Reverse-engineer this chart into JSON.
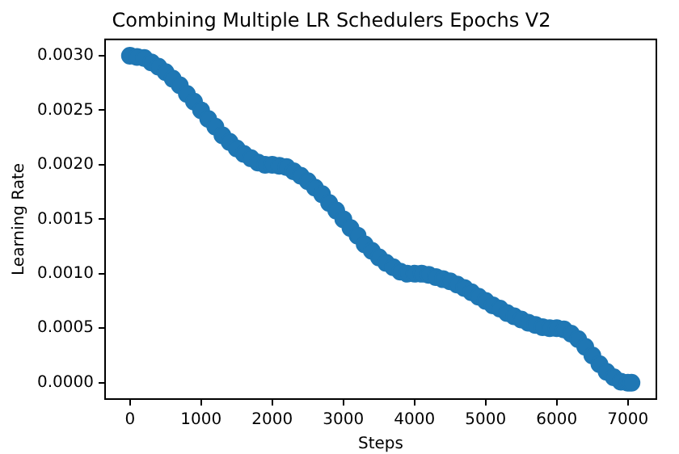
{
  "chart_data": {
    "type": "scatter",
    "title": "Combining Multiple LR Schedulers Epochs V2",
    "xlabel": "Steps",
    "ylabel": "Learning Rate",
    "x": [
      0,
      100,
      200,
      300,
      400,
      500,
      600,
      700,
      800,
      900,
      1000,
      1100,
      1200,
      1300,
      1400,
      1500,
      1600,
      1700,
      1800,
      1900,
      2000,
      2100,
      2200,
      2300,
      2400,
      2500,
      2600,
      2700,
      2800,
      2900,
      3000,
      3100,
      3200,
      3300,
      3400,
      3500,
      3600,
      3700,
      3800,
      3900,
      4000,
      4100,
      4200,
      4300,
      4400,
      4500,
      4600,
      4700,
      4800,
      4900,
      5000,
      5100,
      5200,
      5300,
      5400,
      5500,
      5600,
      5700,
      5800,
      5900,
      6000,
      6100,
      6200,
      6300,
      6400,
      6500,
      6600,
      6700,
      6800,
      6900,
      7000,
      7050
    ],
    "series": [
      {
        "color": "#1f77b4",
        "values": [
          0.003,
          0.00299,
          0.00298,
          0.00294,
          0.0029,
          0.00285,
          0.00279,
          0.00273,
          0.00265,
          0.00258,
          0.0025,
          0.00242,
          0.00235,
          0.00227,
          0.00221,
          0.00215,
          0.0021,
          0.00206,
          0.00202,
          0.002,
          0.002,
          0.00199,
          0.00198,
          0.00194,
          0.0019,
          0.00185,
          0.00179,
          0.00173,
          0.00165,
          0.00158,
          0.0015,
          0.00142,
          0.00135,
          0.00127,
          0.00121,
          0.00115,
          0.0011,
          0.00106,
          0.00102,
          0.001,
          0.001,
          0.001,
          0.00099,
          0.00097,
          0.00095,
          0.00093,
          0.0009,
          0.00087,
          0.00083,
          0.00079,
          0.00075,
          0.00071,
          0.00068,
          0.00064,
          0.00061,
          0.00058,
          0.00055,
          0.00053,
          0.00051,
          0.0005,
          0.0005,
          0.00049,
          0.00045,
          0.0004,
          0.00033,
          0.00025,
          0.00017,
          0.0001,
          5e-05,
          1e-05,
          0,
          0
        ]
      }
    ],
    "xlim": [
      -350,
      7400
    ],
    "xticks": [
      0,
      1000,
      2000,
      3000,
      4000,
      5000,
      6000,
      7000
    ],
    "ylim": [
      -0.00015,
      0.00315
    ],
    "yticks": [
      {
        "value": 0,
        "label": "0.0000"
      },
      {
        "value": 0.0005,
        "label": "0.0005"
      },
      {
        "value": 0.001,
        "label": "0.0010"
      },
      {
        "value": 0.0015,
        "label": "0.0015"
      },
      {
        "value": 0.002,
        "label": "0.0020"
      },
      {
        "value": 0.0025,
        "label": "0.0025"
      },
      {
        "value": 0.003,
        "label": "0.0030"
      }
    ],
    "marker": "circle",
    "grid": false,
    "legend": false
  }
}
